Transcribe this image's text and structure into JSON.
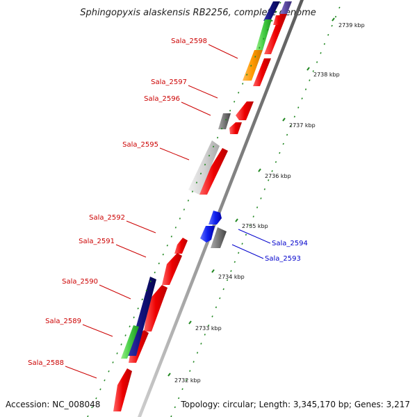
{
  "title": "Sphingopyxis alaskensis RB2256, complete genome",
  "footer": {
    "accession": "Accession: NC_008048",
    "summary": "Topology: circular; Length: 3,345,170 bp; Genes: 3,217"
  },
  "colors": {
    "forward_label": "#cc0000",
    "reverse_label": "#0000cc",
    "ruler_dots": "#228822",
    "backbone": "#888888"
  },
  "ruler_ticks": [
    {
      "label": "2739 kbp"
    },
    {
      "label": "2738 kbp"
    },
    {
      "label": "2737 kbp"
    },
    {
      "label": "2736 kbp"
    },
    {
      "label": "2735 kbp"
    },
    {
      "label": "2734 kbp"
    },
    {
      "label": "2733 kbp"
    },
    {
      "label": "2732 kbp"
    }
  ],
  "gene_labels": [
    {
      "text": "Sala_2598",
      "strand": "forward"
    },
    {
      "text": "Sala_2597",
      "strand": "forward"
    },
    {
      "text": "Sala_2596",
      "strand": "forward"
    },
    {
      "text": "Sala_2595",
      "strand": "forward"
    },
    {
      "text": "Sala_2592",
      "strand": "forward"
    },
    {
      "text": "Sala_2591",
      "strand": "forward"
    },
    {
      "text": "Sala_2590",
      "strand": "forward"
    },
    {
      "text": "Sala_2589",
      "strand": "forward"
    },
    {
      "text": "Sala_2588",
      "strand": "forward"
    },
    {
      "text": "Sala_2594",
      "strand": "reverse"
    },
    {
      "text": "Sala_2593",
      "strand": "reverse"
    }
  ]
}
